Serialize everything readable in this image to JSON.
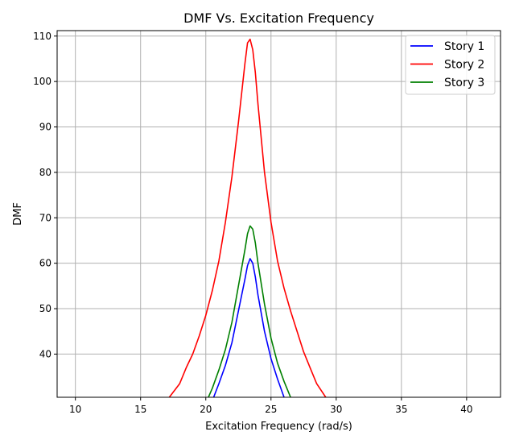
{
  "chart_data": {
    "type": "line",
    "title": "DMF Vs. Excitation Frequency",
    "xlabel": "Excitation Frequency (rad/s)",
    "ylabel": "DMF",
    "xlim": [
      8.6,
      42.6
    ],
    "ylim": [
      30.5,
      111.2
    ],
    "xticks": [
      10,
      15,
      20,
      25,
      30,
      35,
      40
    ],
    "yticks": [
      40,
      50,
      60,
      70,
      80,
      90,
      100,
      110
    ],
    "grid": true,
    "legend_position": "top-right",
    "series": [
      {
        "name": "Story 1",
        "color": "#0000ff",
        "x": [
          20.6,
          21.0,
          21.5,
          22.0,
          22.5,
          23.0,
          23.2,
          23.4,
          23.6,
          23.8,
          24.0,
          24.5,
          25.0,
          25.5,
          26.0
        ],
        "y": [
          30.5,
          33.5,
          37.5,
          42.5,
          49.5,
          56.5,
          59.5,
          61.0,
          60.0,
          57.0,
          53.0,
          45.0,
          39.0,
          34.5,
          30.5
        ]
      },
      {
        "name": "Story 2",
        "color": "#ff0000",
        "x": [
          17.2,
          18.0,
          18.5,
          19.0,
          19.5,
          20.0,
          20.5,
          21.0,
          21.5,
          22.0,
          22.5,
          23.0,
          23.2,
          23.4,
          23.6,
          23.8,
          24.0,
          24.5,
          25.0,
          25.5,
          26.0,
          26.5,
          27.0,
          27.5,
          28.0,
          28.5,
          29.2
        ],
        "y": [
          30.5,
          33.5,
          37.0,
          40.0,
          44.0,
          48.5,
          54.0,
          60.5,
          69.0,
          79.0,
          91.0,
          104.0,
          108.5,
          109.3,
          107.0,
          102.0,
          95.0,
          80.0,
          69.0,
          60.5,
          54.5,
          49.5,
          45.0,
          40.5,
          37.0,
          33.5,
          30.5
        ]
      },
      {
        "name": "Story 3",
        "color": "#008000",
        "x": [
          20.2,
          20.5,
          21.0,
          21.5,
          22.0,
          22.5,
          23.0,
          23.2,
          23.4,
          23.6,
          23.8,
          24.0,
          24.5,
          25.0,
          25.5,
          26.0,
          26.5
        ],
        "y": [
          30.5,
          32.5,
          36.5,
          41.0,
          47.0,
          55.0,
          63.0,
          66.5,
          68.2,
          67.5,
          64.5,
          60.0,
          51.0,
          43.5,
          38.0,
          34.0,
          30.5
        ]
      }
    ]
  }
}
